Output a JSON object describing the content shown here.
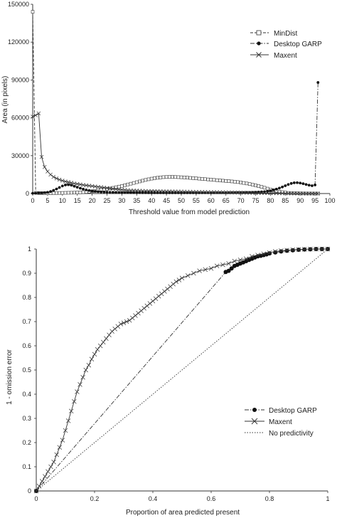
{
  "chart_data": [
    {
      "type": "line",
      "xlabel": "Threshold value from model prediction",
      "ylabel": "Area (in pixels)",
      "xlim": [
        0,
        100
      ],
      "ylim": [
        0,
        150000
      ],
      "xticks": [
        0,
        5,
        10,
        15,
        20,
        25,
        30,
        35,
        40,
        45,
        50,
        55,
        60,
        65,
        70,
        75,
        80,
        85,
        90,
        95,
        100
      ],
      "yticks": [
        0,
        30000,
        60000,
        90000,
        120000,
        150000
      ],
      "xtick_labels": [
        "0",
        "5",
        "10",
        "15",
        "20",
        "25",
        "30",
        "35",
        "40",
        "45",
        "50",
        "55",
        "60",
        "65",
        "70",
        "75",
        "80",
        "85",
        "90",
        "95",
        "100"
      ],
      "ytick_labels": [
        "0",
        "30000",
        "60000",
        "90000",
        "120000",
        "150000"
      ],
      "legend_position": "top-right",
      "series": [
        {
          "name": "MinDist",
          "marker": "open-square",
          "line": "dashed",
          "x": [
            0,
            1,
            2,
            3,
            4,
            5,
            6,
            7,
            8,
            9,
            10,
            11,
            12,
            13,
            14,
            15,
            16,
            17,
            18,
            19,
            20,
            21,
            22,
            23,
            24,
            25,
            26,
            27,
            28,
            29,
            30,
            31,
            32,
            33,
            34,
            35,
            36,
            37,
            38,
            39,
            40,
            41,
            42,
            43,
            44,
            45,
            46,
            47,
            48,
            49,
            50,
            51,
            52,
            53,
            54,
            55,
            56,
            57,
            58,
            59,
            60,
            61,
            62,
            63,
            64,
            65,
            66,
            67,
            68,
            69,
            70,
            71,
            72,
            73,
            74,
            75,
            76,
            77,
            78,
            79,
            80,
            81,
            82,
            83,
            84,
            85,
            86,
            87,
            88,
            89,
            90,
            91,
            92,
            93,
            94,
            95,
            96
          ],
          "values": [
            144000,
            600,
            400,
            300,
            300,
            300,
            300,
            350,
            400,
            450,
            500,
            550,
            600,
            650,
            700,
            800,
            900,
            1100,
            1300,
            1500,
            1800,
            2100,
            2400,
            2800,
            3200,
            3600,
            4000,
            4500,
            5000,
            5500,
            6000,
            6600,
            7200,
            7800,
            8400,
            9000,
            9600,
            10200,
            10800,
            11300,
            11800,
            12200,
            12500,
            12800,
            13000,
            13100,
            13200,
            13200,
            13100,
            13000,
            12900,
            12800,
            12600,
            12400,
            12200,
            12000,
            11800,
            11600,
            11400,
            11200,
            11000,
            10800,
            10600,
            10400,
            10200,
            10000,
            9800,
            9600,
            9400,
            9100,
            8800,
            8400,
            8000,
            7500,
            7000,
            6500,
            5900,
            5300,
            4600,
            3900,
            3200,
            2600,
            2000,
            1500,
            1100,
            800,
            500,
            350,
            250,
            180,
            120,
            80,
            60,
            40,
            30,
            20,
            10
          ]
        },
        {
          "name": "Desktop GARP",
          "marker": "filled-circle",
          "line": "dash-dot",
          "x": [
            0,
            1,
            2,
            3,
            4,
            5,
            6,
            7,
            8,
            9,
            10,
            11,
            12,
            13,
            14,
            15,
            16,
            17,
            18,
            19,
            20,
            21,
            22,
            23,
            24,
            25,
            26,
            27,
            28,
            29,
            30,
            31,
            32,
            33,
            34,
            35,
            36,
            37,
            38,
            39,
            40,
            41,
            42,
            43,
            44,
            45,
            46,
            47,
            48,
            49,
            50,
            51,
            52,
            53,
            54,
            55,
            56,
            57,
            58,
            59,
            60,
            61,
            62,
            63,
            64,
            65,
            66,
            67,
            68,
            69,
            70,
            71,
            72,
            73,
            74,
            75,
            76,
            77,
            78,
            79,
            80,
            81,
            82,
            83,
            84,
            85,
            86,
            87,
            88,
            89,
            90,
            91,
            92,
            93,
            94,
            95,
            96
          ],
          "values": [
            200,
            300,
            400,
            500,
            700,
            1000,
            1600,
            2500,
            3600,
            4800,
            6000,
            6800,
            7000,
            6600,
            5800,
            5000,
            4200,
            3500,
            2900,
            2400,
            2000,
            1700,
            1500,
            1300,
            1200,
            1100,
            1000,
            950,
            900,
            850,
            800,
            780,
            760,
            740,
            720,
            700,
            690,
            680,
            670,
            660,
            650,
            640,
            630,
            620,
            610,
            600,
            600,
            600,
            600,
            600,
            600,
            600,
            600,
            600,
            600,
            600,
            610,
            620,
            630,
            640,
            650,
            660,
            670,
            680,
            700,
            720,
            740,
            760,
            780,
            800,
            820,
            850,
            880,
            920,
            980,
            1050,
            1150,
            1300,
            1500,
            1800,
            2200,
            2800,
            3500,
            4300,
            5200,
            6200,
            7200,
            8000,
            8500,
            8600,
            8300,
            7800,
            7200,
            6600,
            6200,
            6800,
            88000
          ]
        },
        {
          "name": "Maxent",
          "marker": "cross",
          "line": "solid",
          "x": [
            0,
            1,
            2,
            3,
            4,
            5,
            6,
            7,
            8,
            9,
            10,
            11,
            12,
            13,
            14,
            15,
            16,
            17,
            18,
            19,
            20,
            21,
            22,
            23,
            24,
            25,
            26,
            27,
            28,
            29,
            30,
            31,
            32,
            33,
            34,
            35,
            36,
            37,
            38,
            39,
            40,
            41,
            42,
            43,
            44,
            45,
            46,
            47,
            48,
            49,
            50,
            51,
            52,
            53,
            54,
            55,
            56,
            57,
            58,
            59,
            60,
            61,
            62,
            63,
            64,
            65,
            66,
            67,
            68,
            69,
            70,
            71,
            72,
            73,
            74,
            75,
            76,
            77,
            78,
            79,
            80,
            81,
            82,
            83,
            84,
            85,
            86,
            87,
            88,
            89,
            90,
            91,
            92,
            93,
            94,
            95,
            96
          ],
          "values": [
            61000,
            62000,
            63500,
            29000,
            21000,
            17500,
            15000,
            13200,
            12000,
            11000,
            10200,
            9500,
            9000,
            8500,
            8000,
            7600,
            7200,
            6800,
            6500,
            6200,
            5900,
            5600,
            5300,
            5000,
            4700,
            4400,
            4100,
            3800,
            3500,
            3200,
            3000,
            2800,
            2600,
            2500,
            2400,
            2300,
            2200,
            2100,
            2050,
            2000,
            1950,
            1900,
            1850,
            1800,
            1760,
            1720,
            1680,
            1640,
            1600,
            1560,
            1520,
            1480,
            1440,
            1400,
            1360,
            1320,
            1280,
            1240,
            1200,
            1160,
            1120,
            1080,
            1040,
            1000,
            960,
            920,
            880,
            840,
            800,
            760,
            720,
            680,
            640,
            600,
            560,
            520,
            480,
            440,
            400,
            360,
            320,
            290,
            260,
            230,
            200,
            170,
            140,
            110,
            90,
            70,
            50,
            40,
            30,
            20,
            10,
            5,
            0
          ]
        }
      ]
    },
    {
      "type": "line",
      "xlabel": "Proportion of area predicted present",
      "ylabel": "1 - omission error",
      "xlim": [
        0,
        1
      ],
      "ylim": [
        0,
        1
      ],
      "xticks": [
        0,
        0.2,
        0.4,
        0.6,
        0.8,
        1
      ],
      "yticks": [
        0,
        0.1,
        0.2,
        0.3,
        0.4,
        0.5,
        0.6,
        0.7,
        0.8,
        0.9,
        1
      ],
      "xtick_labels": [
        "0",
        "0.2",
        "0.4",
        "0.6",
        "0.8",
        "1"
      ],
      "ytick_labels": [
        "0",
        "0.1",
        "0.2",
        "0.3",
        "0.4",
        "0.5",
        "0.6",
        "0.7",
        "0.8",
        "0.9",
        "1"
      ],
      "legend_position": "bottom-right",
      "series": [
        {
          "name": "Desktop GARP",
          "marker": "filled-circle",
          "line": "dash-dot",
          "x": [
            0,
            0.65,
            0.66,
            0.67,
            0.68,
            0.69,
            0.7,
            0.71,
            0.72,
            0.73,
            0.74,
            0.75,
            0.76,
            0.77,
            0.78,
            0.79,
            0.8,
            0.82,
            0.84,
            0.86,
            0.88,
            0.9,
            0.92,
            0.94,
            0.96,
            0.98,
            1
          ],
          "values": [
            0,
            0.905,
            0.91,
            0.92,
            0.93,
            0.935,
            0.94,
            0.945,
            0.95,
            0.955,
            0.96,
            0.965,
            0.97,
            0.972,
            0.975,
            0.978,
            0.982,
            0.986,
            0.99,
            0.993,
            0.995,
            0.997,
            0.998,
            0.999,
            1,
            1,
            1
          ]
        },
        {
          "name": "Maxent",
          "marker": "cross",
          "line": "solid",
          "x": [
            0,
            0.01,
            0.02,
            0.03,
            0.04,
            0.05,
            0.06,
            0.07,
            0.08,
            0.09,
            0.1,
            0.11,
            0.12,
            0.13,
            0.14,
            0.15,
            0.16,
            0.17,
            0.18,
            0.19,
            0.2,
            0.21,
            0.22,
            0.23,
            0.24,
            0.25,
            0.26,
            0.27,
            0.28,
            0.29,
            0.3,
            0.31,
            0.32,
            0.33,
            0.34,
            0.35,
            0.36,
            0.37,
            0.38,
            0.39,
            0.4,
            0.41,
            0.42,
            0.43,
            0.44,
            0.45,
            0.46,
            0.47,
            0.48,
            0.49,
            0.5,
            0.52,
            0.54,
            0.56,
            0.58,
            0.6,
            0.62,
            0.64,
            0.66,
            0.68,
            0.7,
            0.72,
            0.74,
            0.76,
            0.78,
            0.8,
            0.82,
            0.84,
            0.86,
            0.88,
            0.9,
            0.92,
            0.94,
            0.96,
            0.98,
            1
          ],
          "values": [
            0,
            0.02,
            0.04,
            0.06,
            0.08,
            0.1,
            0.12,
            0.15,
            0.18,
            0.21,
            0.25,
            0.29,
            0.33,
            0.37,
            0.41,
            0.44,
            0.47,
            0.5,
            0.52,
            0.545,
            0.565,
            0.585,
            0.6,
            0.615,
            0.63,
            0.645,
            0.66,
            0.67,
            0.68,
            0.69,
            0.695,
            0.7,
            0.705,
            0.715,
            0.725,
            0.735,
            0.745,
            0.755,
            0.765,
            0.775,
            0.785,
            0.795,
            0.805,
            0.815,
            0.825,
            0.835,
            0.845,
            0.855,
            0.865,
            0.872,
            0.88,
            0.89,
            0.9,
            0.91,
            0.915,
            0.92,
            0.93,
            0.935,
            0.94,
            0.95,
            0.955,
            0.96,
            0.97,
            0.975,
            0.98,
            0.985,
            0.99,
            0.993,
            0.995,
            0.997,
            0.998,
            0.999,
            1,
            1,
            1,
            1
          ]
        },
        {
          "name": "No predictivity",
          "marker": "none",
          "line": "dotted",
          "x": [
            0,
            1
          ],
          "values": [
            0,
            1
          ]
        }
      ]
    }
  ]
}
